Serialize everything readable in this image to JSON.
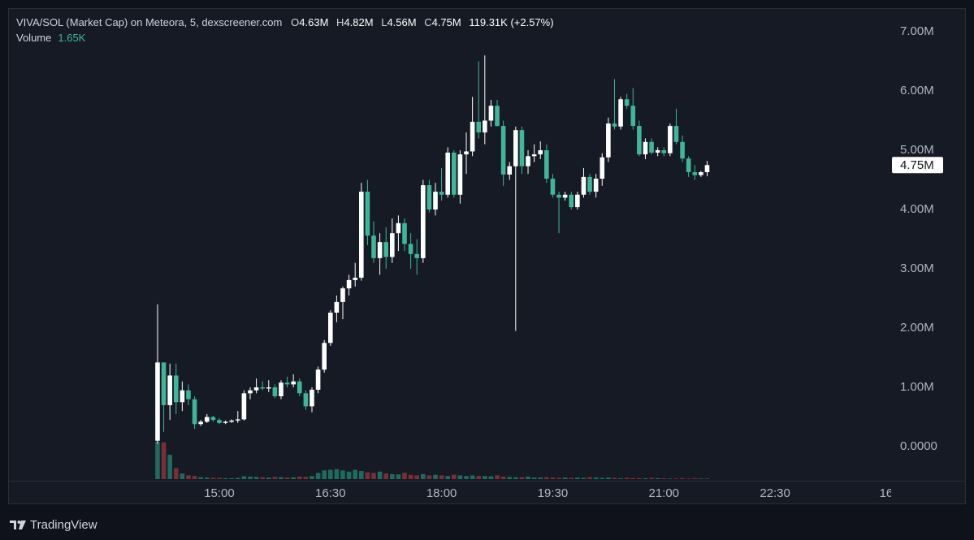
{
  "chart_data": {
    "type": "candlestick",
    "title": "VIVA/SOL (Market Cap) on Meteora, 5, dexscreener.com",
    "legend": {
      "open": {
        "key": "O",
        "value": "4.63M"
      },
      "high": {
        "key": "H",
        "value": "4.82M"
      },
      "low": {
        "key": "L",
        "value": "4.56M"
      },
      "close": {
        "key": "C",
        "value": "4.75M"
      },
      "change": "119.31K (+2.57%)",
      "volume": {
        "key": "Volume",
        "value": "1.65K"
      }
    },
    "brand": "TradingView",
    "up_color": "#ffffff",
    "down_color": "#3fb59a",
    "volume_up_color": "#1f6b5e",
    "volume_down_color": "#7a2f36",
    "x": [
      850,
      855,
      860,
      865,
      870,
      875,
      880,
      885,
      890,
      895,
      900,
      905,
      910,
      915,
      920,
      925,
      930,
      935,
      940,
      945,
      950,
      955,
      960,
      965,
      970,
      975,
      980,
      985,
      990,
      995,
      1000,
      1005,
      1010,
      1015,
      1020,
      1025,
      1030,
      1035,
      1040,
      1045,
      1050,
      1055,
      1060,
      1065,
      1070,
      1075,
      1080,
      1085,
      1090,
      1095,
      1100,
      1105,
      1110,
      1115,
      1120,
      1125,
      1130,
      1135,
      1140,
      1145,
      1150,
      1155,
      1160,
      1165,
      1170,
      1175,
      1180,
      1185,
      1190,
      1195,
      1200,
      1205,
      1210,
      1215,
      1220,
      1225,
      1230,
      1235,
      1240,
      1245,
      1250,
      1255,
      1260,
      1265,
      1270,
      1275,
      1280,
      1285,
      1290,
      1295
    ],
    "open": [
      100000,
      1420000,
      700000,
      1200000,
      750000,
      950000,
      800000,
      380000,
      420000,
      500000,
      450000,
      400000,
      420000,
      440000,
      460000,
      900000,
      950000,
      1000000,
      980000,
      1000000,
      850000,
      1080000,
      1050000,
      1100000,
      900000,
      680000,
      960000,
      1300000,
      1750000,
      2260000,
      2440000,
      2670000,
      2810000,
      2850000,
      4300000,
      3560000,
      3180000,
      3450000,
      3200000,
      3600000,
      3770000,
      3420000,
      3250000,
      3180000,
      4410000,
      4000000,
      4300000,
      4250000,
      4960000,
      4250000,
      4930000,
      4980000,
      5480000,
      5300000,
      5500000,
      5750000,
      5410000,
      4590000,
      4730000,
      5340000,
      4730000,
      4900000,
      4930000,
      5000000,
      4520000,
      4250000,
      4200000,
      4250000,
      4040000,
      4250000,
      4550000,
      4300000,
      4520000,
      4880000,
      5450000,
      5400000,
      5860000,
      5750000,
      5410000,
      4930000,
      5140000,
      4960000,
      5000000,
      4950000,
      5410000,
      5140000,
      4860000,
      4630000,
      4580000,
      4630000
    ],
    "high": [
      2400000,
      1420000,
      1400000,
      1400000,
      1100000,
      1050000,
      850000,
      450000,
      550000,
      520000,
      480000,
      440000,
      460000,
      600000,
      950000,
      1000000,
      1150000,
      1100000,
      1120000,
      1050000,
      1120000,
      1180000,
      1220000,
      1150000,
      950000,
      1000000,
      1350000,
      1800000,
      2300000,
      2550000,
      2700000,
      2900000,
      3100000,
      4450000,
      4500000,
      3800000,
      3600000,
      3700000,
      3850000,
      3900000,
      3850000,
      3600000,
      3500000,
      4500000,
      4500000,
      4450000,
      4700000,
      5050000,
      5000000,
      5000000,
      5300000,
      5900000,
      6500000,
      6600000,
      5850000,
      5850000,
      5500000,
      4800000,
      5400000,
      5400000,
      5000000,
      5100000,
      5150000,
      5100000,
      4600000,
      4300000,
      4300000,
      4300000,
      4300000,
      4700000,
      4600000,
      4600000,
      4950000,
      5550000,
      6200000,
      5900000,
      5950000,
      6050000,
      5500000,
      5200000,
      5200000,
      5050000,
      5050000,
      5450000,
      5700000,
      5250000,
      4900000,
      4750000,
      4650000,
      4820000
    ],
    "low": [
      50000,
      250000,
      450000,
      550000,
      600000,
      700000,
      300000,
      350000,
      400000,
      420000,
      380000,
      380000,
      400000,
      400000,
      440000,
      800000,
      900000,
      950000,
      920000,
      820000,
      800000,
      1000000,
      1000000,
      850000,
      620000,
      580000,
      900000,
      1250000,
      1700000,
      2100000,
      2150000,
      2550000,
      2700000,
      2800000,
      3400000,
      3100000,
      2900000,
      3000000,
      3100000,
      3300000,
      3300000,
      3000000,
      2900000,
      3100000,
      3950000,
      3900000,
      4150000,
      4200000,
      4200000,
      4100000,
      4600000,
      4900000,
      5200000,
      5100000,
      5400000,
      5400000,
      4400000,
      4500000,
      1950000,
      4600000,
      4600000,
      4800000,
      4850000,
      4450000,
      4200000,
      3600000,
      4150000,
      4000000,
      4000000,
      4200000,
      4250000,
      4200000,
      4400000,
      4800000,
      5350000,
      5350000,
      5700000,
      5350000,
      4900000,
      4850000,
      4930000,
      4900000,
      4900000,
      4900000,
      5100000,
      4800000,
      4550000,
      4500000,
      4550000,
      4560000
    ],
    "close": [
      1420000,
      700000,
      1200000,
      750000,
      950000,
      800000,
      380000,
      420000,
      500000,
      450000,
      400000,
      420000,
      440000,
      460000,
      900000,
      950000,
      1000000,
      980000,
      1000000,
      850000,
      1080000,
      1050000,
      1100000,
      900000,
      680000,
      960000,
      1300000,
      1750000,
      2260000,
      2440000,
      2670000,
      2810000,
      2850000,
      4300000,
      3560000,
      3180000,
      3450000,
      3200000,
      3600000,
      3770000,
      3420000,
      3250000,
      3180000,
      4410000,
      4000000,
      4300000,
      4250000,
      4960000,
      4250000,
      4930000,
      4980000,
      5480000,
      5300000,
      5500000,
      5750000,
      5410000,
      4590000,
      4730000,
      5340000,
      4730000,
      4900000,
      4930000,
      5000000,
      4520000,
      4250000,
      4200000,
      4250000,
      4040000,
      4250000,
      4550000,
      4300000,
      4520000,
      4880000,
      5450000,
      5400000,
      5860000,
      5750000,
      5410000,
      4930000,
      5140000,
      4960000,
      5000000,
      4950000,
      5410000,
      5140000,
      4860000,
      4630000,
      4580000,
      4630000,
      4750000
    ],
    "volume": [
      120000,
      118000,
      78000,
      35000,
      18000,
      12000,
      10000,
      6000,
      5000,
      4000,
      4000,
      3000,
      3000,
      4000,
      9000,
      8000,
      7000,
      6000,
      5000,
      7000,
      6000,
      5000,
      6000,
      8000,
      7000,
      10000,
      20000,
      28000,
      30000,
      32000,
      28000,
      24000,
      30000,
      26000,
      22000,
      20000,
      24000,
      18000,
      16000,
      15000,
      20000,
      14000,
      12000,
      16000,
      12000,
      14000,
      12000,
      10000,
      14000,
      12000,
      10000,
      12000,
      10000,
      10000,
      9000,
      12000,
      8000,
      7000,
      6000,
      6000,
      8000,
      5000,
      5000,
      6000,
      5000,
      4000,
      5000,
      4000,
      5000,
      4000,
      6000,
      5000,
      4000,
      5000,
      4000,
      3000,
      4000,
      3000,
      3000,
      3000,
      4000,
      3000,
      3000,
      2000,
      2000,
      3000,
      2000,
      3000,
      2000,
      1650
    ],
    "xlim": [
      729,
      1444
    ],
    "xticks": [
      {
        "value": 900,
        "label": "15:00"
      },
      {
        "value": 990,
        "label": "16:30"
      },
      {
        "value": 1080,
        "label": "18:00"
      },
      {
        "value": 1170,
        "label": "19:30"
      },
      {
        "value": 1260,
        "label": "21:00"
      },
      {
        "value": 1350,
        "label": "22:30"
      },
      {
        "value": 1440,
        "label": "16"
      }
    ],
    "ylim": [
      -575000,
      7370000
    ],
    "yticks": [
      {
        "value": 0,
        "label": "0.0000"
      },
      {
        "value": 1000000,
        "label": "1.00M"
      },
      {
        "value": 2000000,
        "label": "2.00M"
      },
      {
        "value": 3000000,
        "label": "3.00M"
      },
      {
        "value": 4000000,
        "label": "4.00M"
      },
      {
        "value": 5000000,
        "label": "5.00M"
      },
      {
        "value": 6000000,
        "label": "6.00M"
      },
      {
        "value": 7000000,
        "label": "7.00M"
      }
    ],
    "last_price": {
      "value": 4750000,
      "label": "4.75M"
    },
    "grid": false
  }
}
